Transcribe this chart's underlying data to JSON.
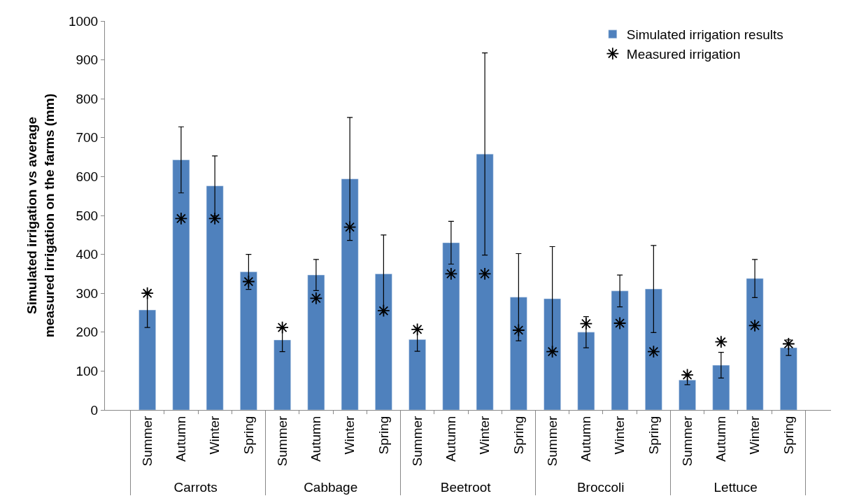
{
  "chart_data": {
    "type": "bar",
    "ylabel": "Simulated irrigation vs average measured irrigation on the farms (mm)",
    "categories": [
      "Summer",
      "Autumn",
      "Winter",
      "Spring",
      "Summer",
      "Autumn",
      "Winter",
      "Spring",
      "Summer",
      "Autumn",
      "Winter",
      "Spring",
      "Summer",
      "Autumn",
      "Winter",
      "Spring",
      "Summer",
      "Autumn",
      "Winter",
      "Spring"
    ],
    "annotations": [
      "Carrots",
      "Cabbage",
      "Beetroot",
      "Broccoli",
      "Lettuce"
    ],
    "series": [
      {
        "name": "Simulated irrigation results",
        "color": "#4f81bd",
        "values": [
          257,
          643,
          576,
          355,
          180,
          347,
          594,
          350,
          181,
          430,
          658,
          290,
          286,
          200,
          306,
          311,
          77,
          115,
          338,
          160
        ],
        "errors": [
          45,
          85,
          77,
          45,
          30,
          40,
          158,
          100,
          30,
          55,
          260,
          112,
          134,
          40,
          41,
          112,
          12,
          33,
          49,
          20
        ]
      },
      {
        "name": "Measured irrigation",
        "type": "scatter",
        "color": "#000000",
        "marker": "cross",
        "values": [
          300,
          492,
          492,
          330,
          212,
          287,
          470,
          255,
          207,
          350,
          350,
          205,
          150,
          222,
          223,
          150,
          90,
          175,
          217,
          170
        ]
      }
    ],
    "ylim": [
      0,
      1000
    ],
    "yticks": [
      0,
      100,
      200,
      300,
      400,
      500,
      600,
      700,
      800,
      900,
      1000
    ],
    "legend": "top right"
  }
}
